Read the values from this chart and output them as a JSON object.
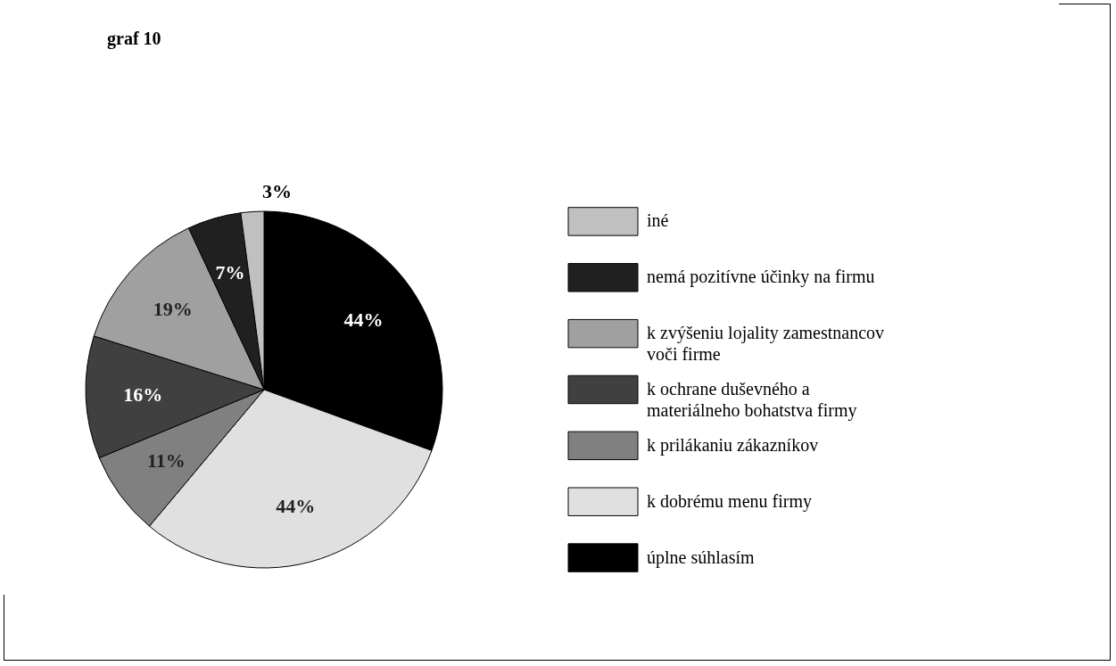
{
  "chart_data": {
    "type": "pie",
    "title": "graf 10",
    "categories": [
      "úplne súhlasím",
      "k dobrému menu firmy",
      "k prilákaniu zákazníkov",
      "k ochrane duševného a materiálneho bohatstva firmy",
      "k zvýšeniu lojality zamestnancov voči firme",
      "nemá pozitívne účinky na firmu",
      "iné"
    ],
    "values": [
      44,
      44,
      11,
      16,
      19,
      7,
      3
    ],
    "colors": [
      "#000000",
      "#e0e0e0",
      "#808080",
      "#404040",
      "#a0a0a0",
      "#202020",
      "#c0c0c0"
    ],
    "value_labels": [
      "44%",
      "44%",
      "11%",
      "16%",
      "19%",
      "7%",
      "3%"
    ],
    "legend": "right"
  }
}
